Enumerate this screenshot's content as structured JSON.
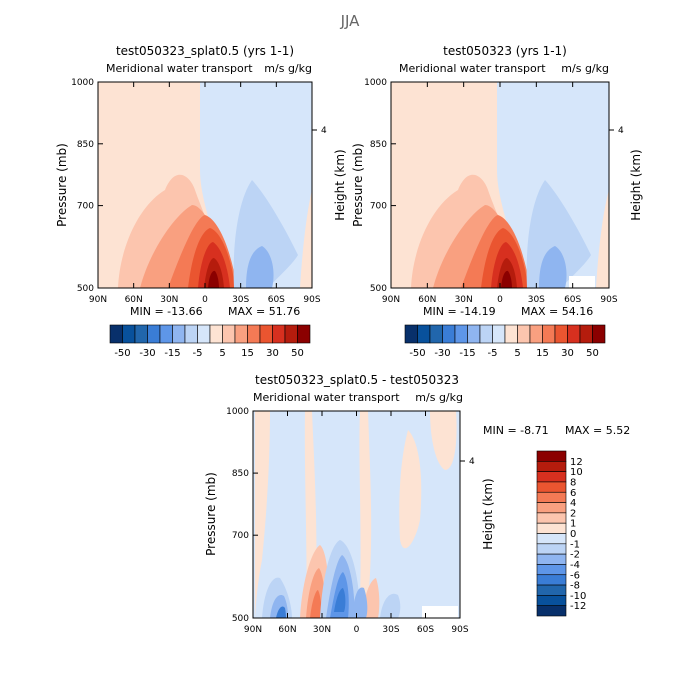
{
  "figure_title": "JJA",
  "chart_data": [
    {
      "type": "heatmap",
      "title": "test050323_splat0.5 (yrs 1-1)",
      "subtitle": "Meridional water transport",
      "units": "m/s g/kg",
      "xlabel": "",
      "ylabel": "Pressure (mb)",
      "y2label": "Height (km)",
      "x_ticks": [
        "90N",
        "60N",
        "30N",
        "0",
        "30S",
        "60S",
        "90S"
      ],
      "y_ticks": [
        "500",
        "700",
        "850",
        "1000"
      ],
      "y_ticks_values": [
        500,
        700,
        850,
        1000
      ],
      "y2_ticks": [
        "4"
      ],
      "ylim": [
        1000,
        500
      ],
      "min": -13.66,
      "max": 51.76,
      "min_label": "MIN = -13.66",
      "max_label": "MAX = 51.76",
      "colorbar": {
        "orientation": "horizontal",
        "labels": [
          "-50",
          "-30",
          "-15",
          "-5",
          "5",
          "15",
          "30",
          "50"
        ],
        "colors": [
          "#08306b",
          "#08519c",
          "#2166ac",
          "#3a7dd6",
          "#5e96e8",
          "#8fb5f0",
          "#bcd4f5",
          "#d6e6fa",
          "#fde3d3",
          "#fcc5ae",
          "#f9a080",
          "#f47a55",
          "#ea5530",
          "#d7301f",
          "#b51c0d",
          "#8b0000"
        ]
      }
    },
    {
      "type": "heatmap",
      "title": "test050323 (yrs 1-1)",
      "subtitle": "Meridional water transport",
      "units": "m/s g/kg",
      "xlabel": "",
      "ylabel": "Pressure (mb)",
      "y2label": "Height (km)",
      "x_ticks": [
        "90N",
        "60N",
        "30N",
        "0",
        "30S",
        "60S",
        "90S"
      ],
      "y_ticks": [
        "500",
        "700",
        "850",
        "1000"
      ],
      "y_ticks_values": [
        500,
        700,
        850,
        1000
      ],
      "y2_ticks": [
        "4"
      ],
      "ylim": [
        1000,
        500
      ],
      "min": -14.19,
      "max": 54.16,
      "min_label": "MIN = -14.19",
      "max_label": "MAX = 54.16",
      "colorbar": {
        "orientation": "horizontal",
        "labels": [
          "-50",
          "-30",
          "-15",
          "-5",
          "5",
          "15",
          "30",
          "50"
        ],
        "colors": [
          "#08306b",
          "#08519c",
          "#2166ac",
          "#3a7dd6",
          "#5e96e8",
          "#8fb5f0",
          "#bcd4f5",
          "#d6e6fa",
          "#fde3d3",
          "#fcc5ae",
          "#f9a080",
          "#f47a55",
          "#ea5530",
          "#d7301f",
          "#b51c0d",
          "#8b0000"
        ]
      }
    },
    {
      "type": "heatmap",
      "title": "test050323_splat0.5 - test050323",
      "subtitle": "Meridional water transport",
      "units": "m/s g/kg",
      "xlabel": "",
      "ylabel": "Pressure (mb)",
      "y2label": "Height (km)",
      "x_ticks": [
        "90N",
        "60N",
        "30N",
        "0",
        "30S",
        "60S",
        "90S"
      ],
      "y_ticks": [
        "500",
        "700",
        "850",
        "1000"
      ],
      "y_ticks_values": [
        500,
        700,
        850,
        1000
      ],
      "y2_ticks": [
        "4"
      ],
      "ylim": [
        1000,
        500
      ],
      "min": -8.71,
      "max": 5.52,
      "min_label": "MIN =  -8.71",
      "max_label": "MAX =   5.52",
      "colorbar": {
        "orientation": "vertical",
        "labels": [
          "12",
          "10",
          "8",
          "6",
          "4",
          "2",
          "1",
          "0",
          "-1",
          "-2",
          "-4",
          "-6",
          "-8",
          "-10",
          "-12"
        ],
        "colors": [
          "#8b0000",
          "#b51c0d",
          "#d7301f",
          "#ea5530",
          "#f47a55",
          "#f9a080",
          "#fcc5ae",
          "#fde3d3",
          "#d6e6fa",
          "#bcd4f5",
          "#8fb5f0",
          "#5e96e8",
          "#3a7dd6",
          "#2166ac",
          "#08519c",
          "#08306b"
        ]
      }
    }
  ]
}
